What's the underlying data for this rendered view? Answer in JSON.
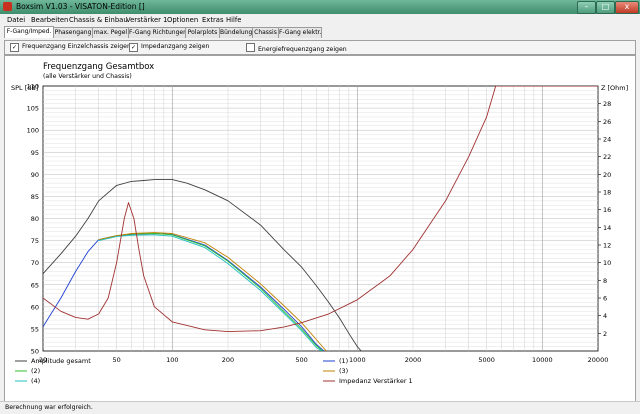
{
  "window": {
    "title": "Boxsim V1.03 - VISATON-Edition []"
  },
  "window_buttons": {
    "minimize": "–",
    "maximize": "□",
    "close": "x"
  },
  "menu": [
    "Datei",
    "Bearbeiten",
    "Chassis & Einbau",
    "Verstärker 1",
    "Optionen",
    "Extras",
    "Hilfe"
  ],
  "tabs": [
    "F-Gang/Imped.",
    "Phasengang",
    "max. Pegel",
    "F-Gang Richtungen",
    "Polarplots",
    "Bündelung",
    "Chassis",
    "F-Gang elektr."
  ],
  "options": [
    {
      "label": "Frequenzgang Einzelchassis zeigen",
      "checked": true
    },
    {
      "label": "Impedanzgang zeigen",
      "checked": true
    },
    {
      "label": "Energiefrequenzgang zeigen",
      "checked": false
    }
  ],
  "status": "Berechnung war erfolgreich.",
  "chart_data": {
    "type": "line",
    "title": "Frequenzgang Gesamtbox",
    "subtitle": "(alle Verstärker und Chassis)",
    "ylabel": "SPL [dB]",
    "y2label": "Z [Ohm]",
    "xscale": "log",
    "xlim": [
      20,
      20000
    ],
    "ylim": [
      50,
      110
    ],
    "y2lim": [
      0,
      30
    ],
    "x_ticks": [
      20,
      50,
      100,
      200,
      500,
      1000,
      2000,
      5000,
      10000,
      20000
    ],
    "y_ticks": [
      50,
      55,
      60,
      65,
      70,
      75,
      80,
      85,
      90,
      95,
      100,
      105,
      110
    ],
    "y2_ticks": [
      2,
      4,
      6,
      8,
      10,
      12,
      14,
      16,
      18,
      20,
      22,
      24,
      26,
      28
    ],
    "grid": true,
    "legend_placement": "bottom",
    "series": [
      {
        "name": "Amplitude gesamt",
        "axis": "left",
        "color": "#404040",
        "x": [
          20,
          25,
          30,
          35,
          40,
          50,
          60,
          70,
          80,
          100,
          120,
          150,
          200,
          300,
          400,
          500,
          600,
          700,
          800,
          900,
          1000,
          1100
        ],
        "y": [
          67.5,
          72,
          76,
          80,
          84,
          87.5,
          88.4,
          88.6,
          88.8,
          88.8,
          88,
          86.5,
          84,
          78.5,
          73,
          69,
          64.8,
          61,
          57.5,
          54,
          51,
          49
        ]
      },
      {
        "name": "(1)",
        "axis": "left",
        "color": "#2040d0",
        "x": [
          20,
          25,
          30,
          35,
          40,
          50,
          60,
          80,
          100,
          150,
          200,
          300,
          400,
          500,
          600,
          660
        ],
        "y": [
          55.5,
          62,
          68,
          72.5,
          75.2,
          76.1,
          76.4,
          76.6,
          76.4,
          74,
          70.5,
          64.5,
          59.5,
          55.5,
          51.5,
          50
        ]
      },
      {
        "name": "(2)",
        "axis": "left",
        "color": "#30c030",
        "x": [
          40,
          50,
          60,
          80,
          100,
          150,
          200,
          300,
          400,
          500,
          600,
          650
        ],
        "y": [
          75.2,
          76.1,
          76.5,
          76.6,
          76.3,
          73.8,
          70.3,
          64.2,
          59,
          55,
          51.2,
          50
        ]
      },
      {
        "name": "(3)",
        "axis": "left",
        "color": "#c08000",
        "x": [
          40,
          50,
          60,
          80,
          100,
          150,
          200,
          300,
          400,
          500,
          600,
          680
        ],
        "y": [
          75.2,
          76.1,
          76.6,
          76.8,
          76.6,
          74.5,
          71.2,
          65.2,
          60.3,
          56.4,
          52.6,
          50
        ]
      },
      {
        "name": "(4)",
        "axis": "left",
        "color": "#20c0c0",
        "x": [
          40,
          50,
          60,
          80,
          100,
          150,
          200,
          300,
          400,
          500,
          600,
          640
        ],
        "y": [
          75,
          75.9,
          76.2,
          76.3,
          76,
          73.4,
          69.8,
          63.7,
          58.6,
          54.6,
          50.8,
          50
        ]
      },
      {
        "name": "Impedanz Verstärker 1",
        "axis": "right",
        "color": "#a03030",
        "x": [
          20,
          25,
          30,
          35,
          40,
          45,
          50,
          55,
          58,
          62,
          66,
          70,
          80,
          100,
          150,
          200,
          300,
          400,
          500,
          700,
          1000,
          1500,
          2000,
          3000,
          4000,
          5000,
          5600,
          6000,
          10000,
          20000
        ],
        "y": [
          6,
          4.5,
          3.8,
          3.6,
          4.2,
          6,
          10,
          15,
          16.8,
          15,
          11.5,
          8.5,
          5,
          3.3,
          2.4,
          2.2,
          2.3,
          2.7,
          3.2,
          4.2,
          5.8,
          8.5,
          11.5,
          17,
          22,
          26.5,
          30,
          30,
          30,
          30
        ]
      }
    ]
  }
}
